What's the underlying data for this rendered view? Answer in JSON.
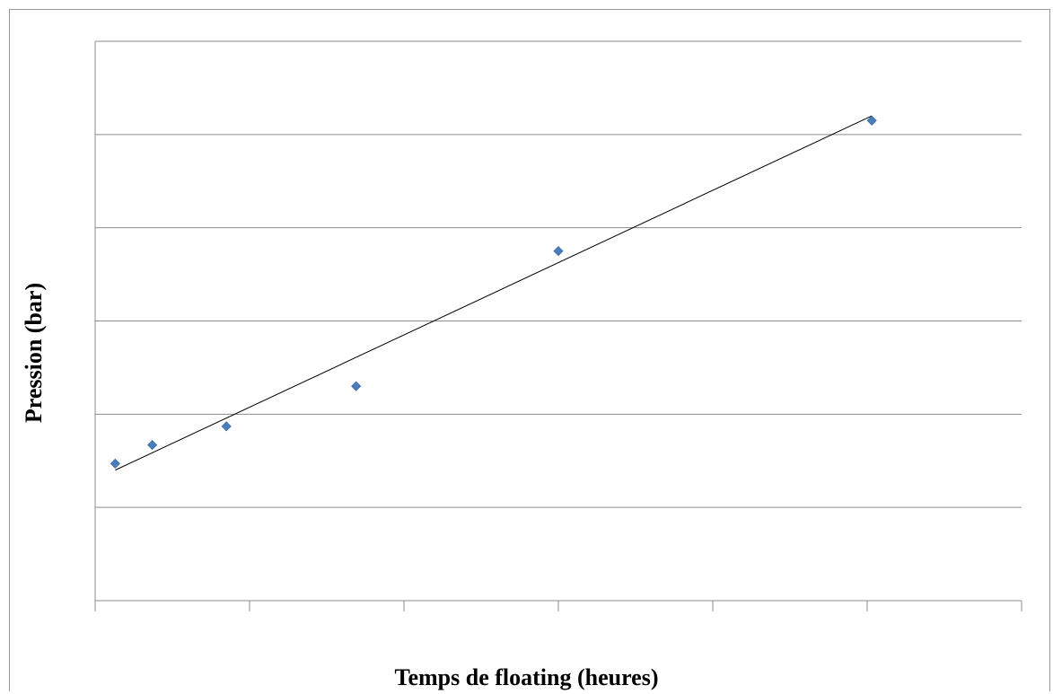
{
  "chart_data": {
    "type": "scatter",
    "title": "",
    "xlabel": "Temps de floating (heures)",
    "ylabel": "Pression (bar)",
    "xlim": [
      0,
      6
    ],
    "ylim": [
      0,
      6
    ],
    "x_ticks": [
      0,
      1,
      2,
      3,
      4,
      5,
      6
    ],
    "y_gridlines": [
      1,
      2,
      3,
      4,
      5,
      6
    ],
    "grid": true,
    "legend": "none",
    "colors": {
      "marker": "#4a7ebb",
      "trendline": "#000000",
      "grid": "#8c8c8c"
    },
    "series": [
      {
        "x": [
          0.13,
          0.37,
          0.85,
          1.69,
          3.0,
          5.03
        ],
        "y": [
          1.47,
          1.67,
          1.87,
          2.3,
          3.75,
          5.15
        ]
      }
    ],
    "trendline": {
      "type": "linear",
      "x": [
        0.13,
        5.03
      ],
      "y": [
        1.4,
        5.2
      ]
    }
  }
}
